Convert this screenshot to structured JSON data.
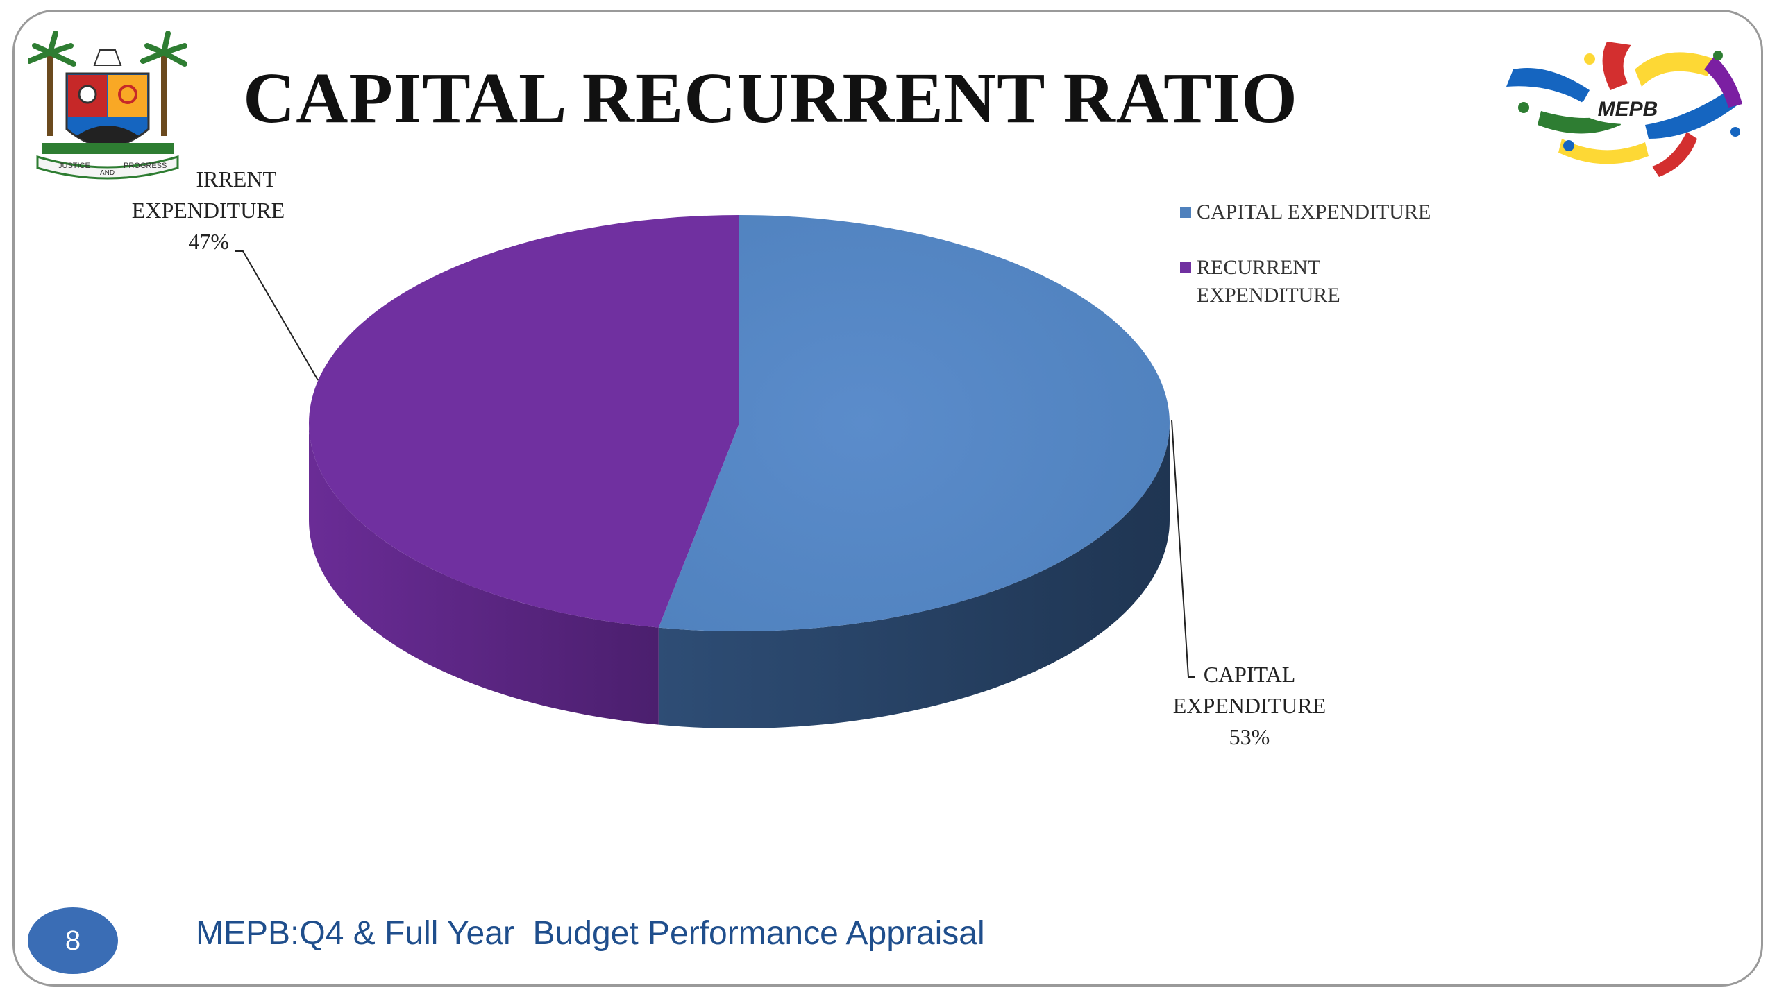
{
  "slide": {
    "title": "CAPITAL RECURRENT RATIO",
    "page_number": "8",
    "footer": "MEPB:Q4 & Full Year  Budget Performance Appraisal",
    "logo_text": "MEPB",
    "crest_motto": [
      "JUSTICE",
      "AND",
      "PROGRESS"
    ]
  },
  "colors": {
    "capital": "#4f81bd",
    "capital_side": "#1f3552",
    "recurrent": "#7030a0",
    "recurrent_side": "#4b1f6e",
    "footer_text": "#1f4e8c",
    "badge": "#3a6db5"
  },
  "chart_data": {
    "type": "pie",
    "style": "3d",
    "categories": [
      "CAPITAL EXPENDITURE",
      "RECURRENT EXPENDITURE"
    ],
    "values": [
      53,
      47
    ],
    "value_labels": [
      "53%",
      "47%"
    ],
    "data_labels": [
      {
        "lines": [
          "CAPITAL",
          "EXPENDITURE",
          "53%"
        ]
      },
      {
        "lines": [
          "IRRENT",
          "EXPENDITURE",
          "47%"
        ]
      }
    ],
    "legend": {
      "placement": "right",
      "entries": [
        "CAPITAL EXPENDITURE",
        "RECURRENT EXPENDITURE"
      ]
    }
  }
}
